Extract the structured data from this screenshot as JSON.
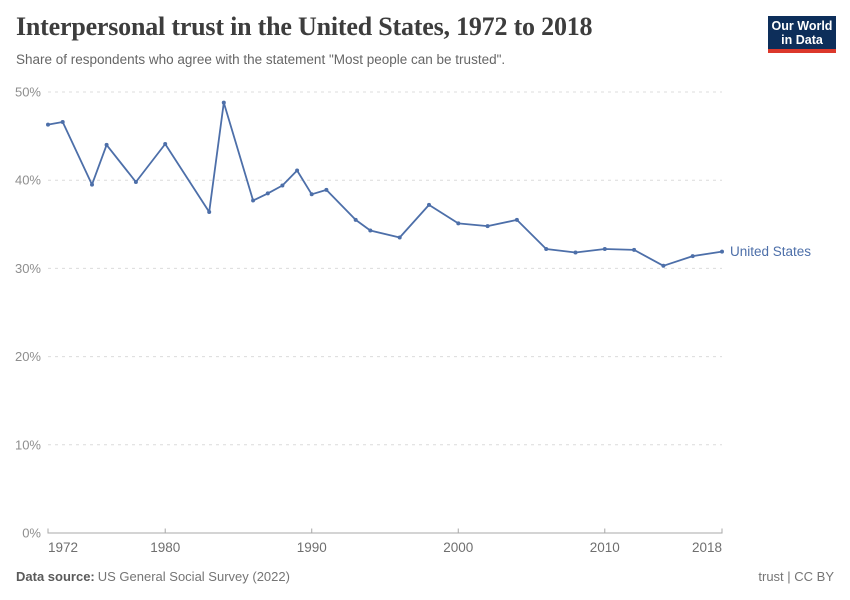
{
  "header": {
    "title": "Interpersonal trust in the United States, 1972 to 2018",
    "subtitle": "Share of respondents who agree with the statement \"Most people can be trusted\".",
    "logo": {
      "line1": "Our World",
      "line2": "in Data"
    }
  },
  "chart_data": {
    "type": "line",
    "title": "Interpersonal trust in the United States, 1972 to 2018",
    "xlabel": "",
    "ylabel": "",
    "xlim": [
      1972,
      2018
    ],
    "ylim": [
      0,
      50
    ],
    "x_ticks": [
      1972,
      1980,
      1990,
      2000,
      2010,
      2018
    ],
    "y_ticks": [
      0,
      10,
      20,
      30,
      40,
      50
    ],
    "y_tick_suffix": "%",
    "grid": "horizontal-dashed",
    "legend": "end-of-line-label",
    "series": [
      {
        "name": "United States",
        "color": "#4d6fa9",
        "points": [
          [
            1972,
            46.3
          ],
          [
            1973,
            46.6
          ],
          [
            1975,
            39.5
          ],
          [
            1976,
            44.0
          ],
          [
            1978,
            39.8
          ],
          [
            1980,
            44.1
          ],
          [
            1983,
            36.4
          ],
          [
            1984,
            48.8
          ],
          [
            1986,
            37.7
          ],
          [
            1987,
            38.5
          ],
          [
            1988,
            39.4
          ],
          [
            1989,
            41.1
          ],
          [
            1990,
            38.4
          ],
          [
            1991,
            38.9
          ],
          [
            1993,
            35.5
          ],
          [
            1994,
            34.3
          ],
          [
            1996,
            33.5
          ],
          [
            1998,
            37.2
          ],
          [
            2000,
            35.1
          ],
          [
            2002,
            34.8
          ],
          [
            2004,
            35.5
          ],
          [
            2006,
            32.2
          ],
          [
            2008,
            31.8
          ],
          [
            2010,
            32.2
          ],
          [
            2012,
            32.1
          ],
          [
            2014,
            30.3
          ],
          [
            2016,
            31.4
          ],
          [
            2018,
            31.9
          ]
        ]
      }
    ]
  },
  "footer": {
    "source_label": "Data source:",
    "source_value": "US General Social Survey (2022)",
    "right_note": "trust | CC BY"
  },
  "colors": {
    "line": "#4d6fa9",
    "title": "#3d3d3d",
    "subtitle": "#666666",
    "gridline": "#dcdcdc",
    "axis_line": "#a8a8a8",
    "y_tick_label": "#8e8e8e",
    "x_tick_label": "#6f6f6f",
    "logo_background": "#0d2e5a",
    "logo_accent": "#dc382b",
    "footer_text": "#757575"
  }
}
